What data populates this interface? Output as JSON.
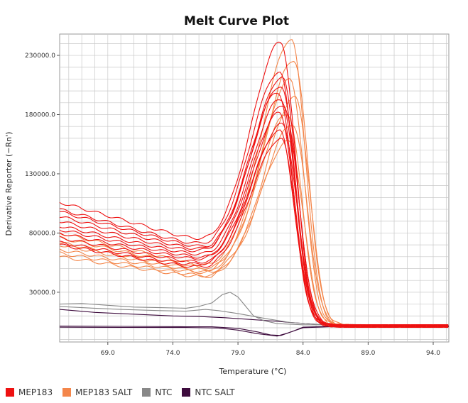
{
  "chart_data": {
    "type": "line",
    "title": "Melt Curve Plot",
    "xlabel": "Temperature (°C)",
    "ylabel": "Derivative Reporter (−Rn')",
    "xlim": [
      65.3,
      95.2
    ],
    "ylim": [
      -12000,
      248000
    ],
    "x_ticks": [
      69.0,
      74.0,
      79.0,
      84.0,
      89.0,
      94.0
    ],
    "x_tick_labels": [
      "69.0",
      "74.0",
      "79.0",
      "84.0",
      "89.0",
      "94.0"
    ],
    "y_ticks": [
      30000,
      80000,
      130000,
      180000,
      230000
    ],
    "y_tick_labels": [
      "30000.0",
      "80000.0",
      "130000.0",
      "180000.0",
      "230000.0"
    ],
    "grid": true,
    "legend_position": "bottom-left",
    "series": [
      {
        "name": "MEP183",
        "color": "#ee1111",
        "curves": [
          {
            "peak": 230000,
            "tm": 82.3,
            "base": 106000,
            "valley": 70000
          },
          {
            "peak": 205000,
            "tm": 82.2,
            "base": 100000,
            "valley": 66000
          },
          {
            "peak": 200000,
            "tm": 82.4,
            "base": 98000,
            "valley": 64000
          },
          {
            "peak": 193000,
            "tm": 82.3,
            "base": 94000,
            "valley": 62000
          },
          {
            "peak": 188000,
            "tm": 82.1,
            "base": 90000,
            "valley": 60000
          },
          {
            "peak": 182000,
            "tm": 82.3,
            "base": 86000,
            "valley": 58000
          },
          {
            "peak": 176000,
            "tm": 82.5,
            "base": 83000,
            "valley": 56000
          },
          {
            "peak": 170000,
            "tm": 82.2,
            "base": 80000,
            "valley": 54000
          },
          {
            "peak": 160000,
            "tm": 82.4,
            "base": 76000,
            "valley": 52000
          },
          {
            "peak": 155000,
            "tm": 82.2,
            "base": 72000,
            "valley": 50000
          },
          {
            "peak": 148000,
            "tm": 82.3,
            "base": 70000,
            "valley": 48000
          }
        ]
      },
      {
        "name": "MEP183 SALT",
        "color": "#f4864a",
        "curves": [
          {
            "peak": 230000,
            "tm": 83.1,
            "base": 80000,
            "valley": 50000
          },
          {
            "peak": 212000,
            "tm": 83.3,
            "base": 76000,
            "valley": 48000
          },
          {
            "peak": 196000,
            "tm": 83.0,
            "base": 72000,
            "valley": 46000
          },
          {
            "peak": 180000,
            "tm": 83.4,
            "base": 70000,
            "valley": 45000
          },
          {
            "peak": 168000,
            "tm": 82.8,
            "base": 66000,
            "valley": 44000
          },
          {
            "peak": 158000,
            "tm": 83.2,
            "base": 63000,
            "valley": 42000
          },
          {
            "peak": 144000,
            "tm": 82.9,
            "base": 60000,
            "valley": 41000
          }
        ]
      },
      {
        "name": "NTC",
        "color": "#888888",
        "curves": [
          {
            "points": [
              [
                65.3,
                20000
              ],
              [
                67,
                20500
              ],
              [
                69,
                19000
              ],
              [
                71,
                17500
              ],
              [
                73,
                17000
              ],
              [
                75,
                16500
              ],
              [
                76,
                18000
              ],
              [
                77,
                21000
              ],
              [
                77.8,
                28000
              ],
              [
                78.4,
                30000
              ],
              [
                79,
                26000
              ],
              [
                79.6,
                18000
              ],
              [
                80.2,
                10000
              ],
              [
                81,
                6000
              ],
              [
                82,
                3500
              ],
              [
                84,
                2500
              ],
              [
                86,
                2500
              ],
              [
                90,
                2000
              ],
              [
                95.2,
                2000
              ]
            ]
          },
          {
            "points": [
              [
                65.3,
                18000
              ],
              [
                67,
                17000
              ],
              [
                70,
                15500
              ],
              [
                73,
                14500
              ],
              [
                75,
                14000
              ],
              [
                76.5,
                15500
              ],
              [
                77.5,
                14500
              ],
              [
                79,
                12000
              ],
              [
                81,
                8000
              ],
              [
                83,
                4500
              ],
              [
                85,
                3000
              ],
              [
                90,
                2500
              ],
              [
                95.2,
                2000
              ]
            ]
          }
        ]
      },
      {
        "name": "NTC SALT",
        "color": "#3d0b3d",
        "curves": [
          {
            "points": [
              [
                65.3,
                15500
              ],
              [
                68,
                13000
              ],
              [
                71,
                11500
              ],
              [
                74,
                10000
              ],
              [
                76,
                9500
              ],
              [
                78,
                8500
              ],
              [
                80,
                7000
              ],
              [
                82,
                5500
              ],
              [
                83,
                4500
              ],
              [
                85,
                3000
              ],
              [
                88,
                2000
              ],
              [
                91,
                1800
              ],
              [
                95.2,
                2000
              ]
            ]
          },
          {
            "points": [
              [
                65.3,
                1500
              ],
              [
                70,
                1200
              ],
              [
                75,
                900
              ],
              [
                77,
                800
              ],
              [
                79,
                -500
              ],
              [
                80.5,
                -3500
              ],
              [
                81.5,
                -6000
              ],
              [
                82.3,
                -6500
              ],
              [
                83.2,
                -3000
              ],
              [
                84,
                500
              ],
              [
                86,
                1200
              ],
              [
                95.2,
                1500
              ]
            ]
          },
          {
            "points": [
              [
                65.3,
                500
              ],
              [
                70,
                300
              ],
              [
                75,
                200
              ],
              [
                77.5,
                -200
              ],
              [
                79,
                -2000
              ],
              [
                80.5,
                -5000
              ],
              [
                82,
                -7000
              ],
              [
                82.8,
                -4500
              ],
              [
                84,
                0
              ],
              [
                86,
                800
              ],
              [
                95.2,
                1000
              ]
            ]
          }
        ]
      }
    ]
  },
  "legend": {
    "items": [
      {
        "label": "MEP183",
        "color": "#ee1111"
      },
      {
        "label": "MEP183 SALT",
        "color": "#f4864a"
      },
      {
        "label": "NTC",
        "color": "#888888"
      },
      {
        "label": "NTC SALT",
        "color": "#3d0b3d"
      }
    ]
  }
}
